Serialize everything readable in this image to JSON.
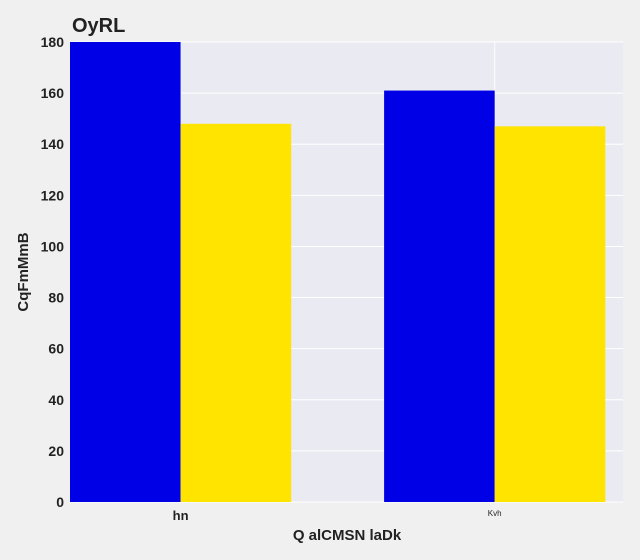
{
  "chart_data": {
    "type": "bar",
    "title": "OyRL",
    "xlabel": "Q alCMSN laDk",
    "ylabel": "CqFmMmB",
    "categories": [
      "hn",
      "Kvh"
    ],
    "series": [
      {
        "values": [
          180,
          161
        ],
        "color": "#0000e6"
      },
      {
        "values": [
          148,
          147
        ],
        "color": "#ffe400"
      }
    ],
    "ylim": [
      0,
      180
    ],
    "yticks": [
      0,
      20,
      40,
      60,
      80,
      100,
      120,
      140,
      160,
      180
    ],
    "grid": true,
    "legend": "none",
    "colors": {
      "plot_background": "#eaeaf2",
      "page_background": "#f0f0f0",
      "gridline": "#ffffff"
    }
  }
}
